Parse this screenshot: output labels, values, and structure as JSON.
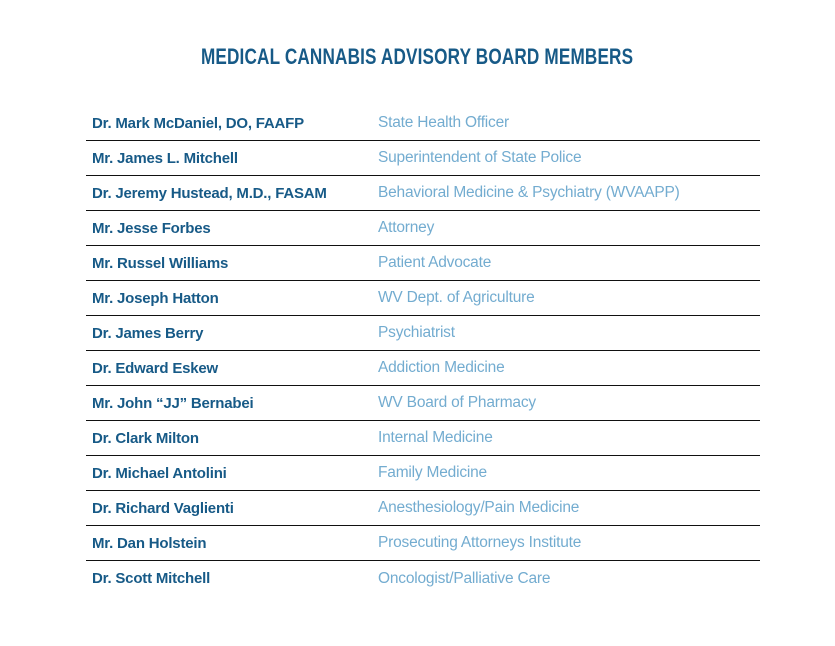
{
  "title": "MEDICAL CANNABIS ADVISORY BOARD MEMBERS",
  "colors": {
    "background": "#ffffff",
    "title": "#175a87",
    "name": "#175a87",
    "role": "#73acd0",
    "divider": "#111111"
  },
  "members": [
    {
      "name": "Dr. Mark McDaniel, DO, FAAFP",
      "role": "State Health Officer"
    },
    {
      "name": "Mr. James L. Mitchell",
      "role": "Superintendent of State Police"
    },
    {
      "name": "Dr. Jeremy Hustead, M.D., FASAM",
      "role": "Behavioral Medicine & Psychiatry (WVAAPP)"
    },
    {
      "name": "Mr. Jesse Forbes",
      "role": "Attorney"
    },
    {
      "name": "Mr. Russel Williams",
      "role": "Patient Advocate"
    },
    {
      "name": "Mr. Joseph Hatton",
      "role": "WV Dept. of Agriculture"
    },
    {
      "name": "Dr. James Berry",
      "role": "Psychiatrist"
    },
    {
      "name": "Dr. Edward Eskew",
      "role": "Addiction Medicine"
    },
    {
      "name": "Mr. John “JJ” Bernabei",
      "role": "WV Board of Pharmacy"
    },
    {
      "name": "Dr. Clark Milton",
      "role": "Internal Medicine"
    },
    {
      "name": "Dr. Michael Antolini",
      "role": "Family Medicine"
    },
    {
      "name": "Dr. Richard Vaglienti",
      "role": "Anesthesiology/Pain Medicine"
    },
    {
      "name": "Mr. Dan Holstein",
      "role": "Prosecuting Attorneys Institute"
    },
    {
      "name": "Dr. Scott Mitchell",
      "role": "Oncologist/Palliative Care"
    }
  ]
}
